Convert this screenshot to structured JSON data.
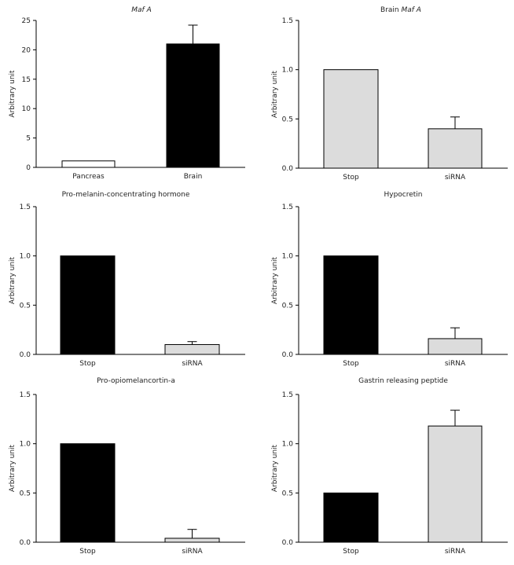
{
  "chart_data": [
    {
      "type": "bar",
      "title": "Maf A",
      "title_italic": true,
      "ylabel": "Arbitrary unit",
      "xlabel": "",
      "categories": [
        "Pancreas",
        "Brain"
      ],
      "values": [
        1.1,
        21.0
      ],
      "errors": [
        0,
        3.2
      ],
      "bar_colors": [
        "#ffffff",
        "#000000"
      ],
      "ylim": [
        0,
        25
      ],
      "yticks": [
        "0",
        "5",
        "10",
        "15",
        "20",
        "25"
      ],
      "ytick_values": [
        0,
        5,
        10,
        15,
        20,
        25
      ],
      "grid": false
    },
    {
      "type": "bar",
      "title": "Brain Maf A",
      "title_prefix": "Brain ",
      "title_italic_part": "Maf A",
      "ylabel": "Arbitrary unit",
      "xlabel": "",
      "categories": [
        "Stop",
        "siRNA"
      ],
      "values": [
        1.0,
        0.4
      ],
      "errors": [
        0,
        0.12
      ],
      "bar_colors": [
        "#dcdcdc",
        "#dcdcdc"
      ],
      "ylim": [
        0,
        1.5
      ],
      "yticks": [
        "0.0",
        "0.5",
        "1.0",
        "1.5"
      ],
      "ytick_values": [
        0,
        0.5,
        1.0,
        1.5
      ],
      "grid": false
    },
    {
      "type": "bar",
      "title": "Pro-melanin-concentrating hormone",
      "ylabel": "Arbitrary unit",
      "xlabel": "",
      "categories": [
        "Stop",
        "siRNA"
      ],
      "values": [
        1.0,
        0.1
      ],
      "errors": [
        0,
        0.03
      ],
      "bar_colors": [
        "#000000",
        "#dcdcdc"
      ],
      "ylim": [
        0,
        1.5
      ],
      "yticks": [
        "0.0",
        "0.5",
        "1.0",
        "1.5"
      ],
      "ytick_values": [
        0,
        0.5,
        1.0,
        1.5
      ],
      "grid": false
    },
    {
      "type": "bar",
      "title": "Hypocretin",
      "ylabel": "Arbitrary unit",
      "xlabel": "",
      "categories": [
        "Stop",
        "siRNA"
      ],
      "values": [
        1.0,
        0.16
      ],
      "errors": [
        0,
        0.11
      ],
      "bar_colors": [
        "#000000",
        "#dcdcdc"
      ],
      "ylim": [
        0,
        1.5
      ],
      "yticks": [
        "0.0",
        "0.5",
        "1.0",
        "1.5"
      ],
      "ytick_values": [
        0,
        0.5,
        1.0,
        1.5
      ],
      "grid": false
    },
    {
      "type": "bar",
      "title": "Pro-opiomelancortin-a",
      "ylabel": "Arbitrary unit",
      "xlabel": "",
      "categories": [
        "Stop",
        "siRNA"
      ],
      "values": [
        1.0,
        0.04
      ],
      "errors": [
        0,
        0.09
      ],
      "bar_colors": [
        "#000000",
        "#dcdcdc"
      ],
      "ylim": [
        0,
        1.5
      ],
      "yticks": [
        "0.0",
        "0.5",
        "1.0",
        "1.5"
      ],
      "ytick_values": [
        0,
        0.5,
        1.0,
        1.5
      ],
      "grid": false
    },
    {
      "type": "bar",
      "title": "Gastrin releasing peptide",
      "ylabel": "Arbitrary unit",
      "xlabel": "",
      "categories": [
        "Stop",
        "siRNA"
      ],
      "values": [
        0.5,
        1.18
      ],
      "errors": [
        0,
        0.16
      ],
      "bar_colors": [
        "#000000",
        "#dcdcdc"
      ],
      "ylim": [
        0,
        1.5
      ],
      "yticks": [
        "0.0",
        "0.5",
        "1.0",
        "1.5"
      ],
      "ytick_values": [
        0,
        0.5,
        1.0,
        1.5
      ],
      "grid": false
    }
  ]
}
